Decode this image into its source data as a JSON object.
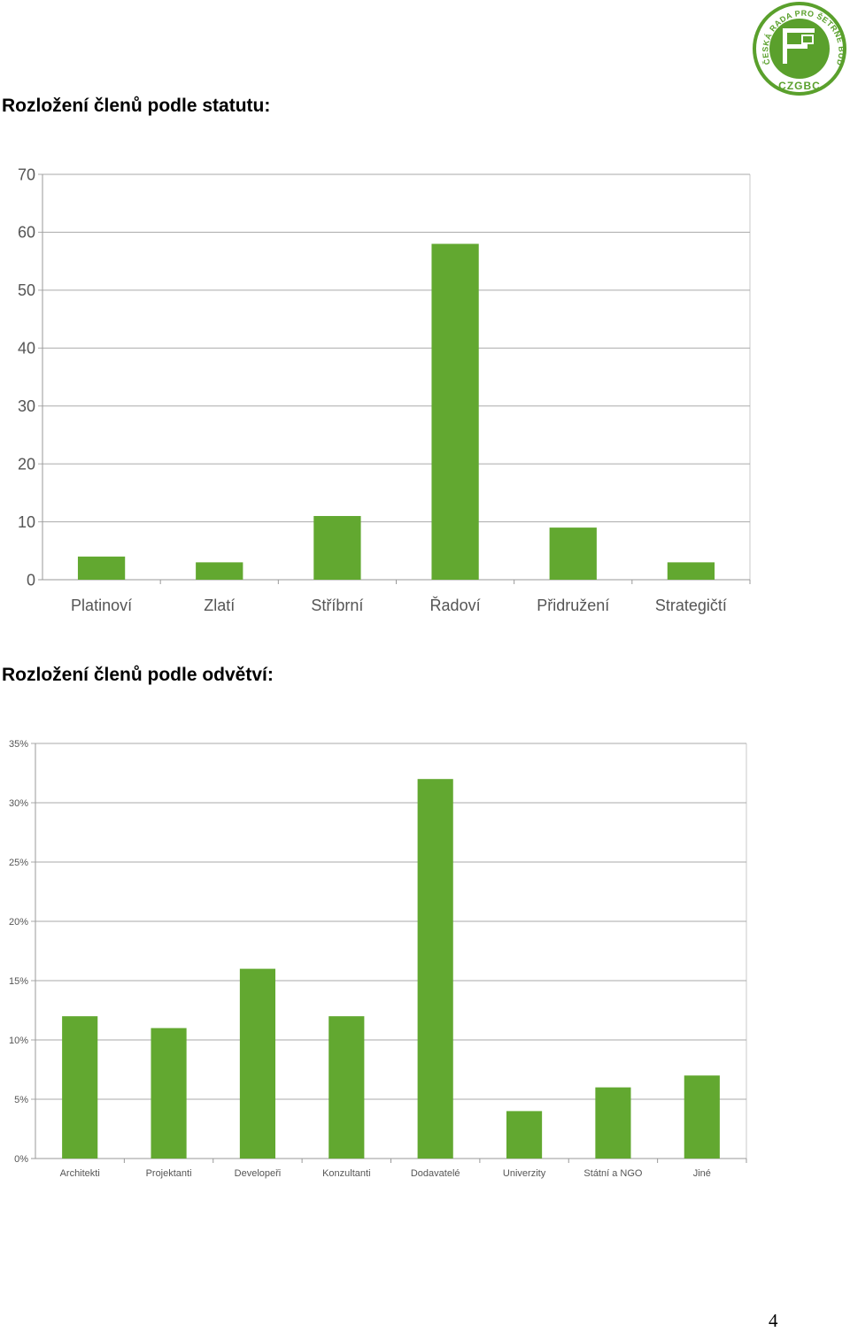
{
  "logo": {
    "ring_text": "ČESKÁ RADA PRO ŠETRNÉ BUDOVY",
    "abbr": "CZGBC",
    "color": "#5aa02c"
  },
  "sections": [
    {
      "heading": "Rozložení členů podle statutu:"
    },
    {
      "heading": "Rozložení členů podle odvětví:"
    }
  ],
  "chart_data": [
    {
      "type": "bar",
      "categories": [
        "Platinoví",
        "Zlatí",
        "Stříbrní",
        "Řadoví",
        "Přidružení",
        "Strategičtí"
      ],
      "values": [
        4,
        3,
        11,
        58,
        9,
        3
      ],
      "ylim": [
        0,
        70
      ],
      "yticks": [
        0,
        10,
        20,
        30,
        40,
        50,
        60,
        70
      ],
      "grid": true,
      "bar_color": "#62a830"
    },
    {
      "type": "bar",
      "categories": [
        "Architekti",
        "Projektanti",
        "Developeři",
        "Konzultanti",
        "Dodavatelé",
        "Univerzity",
        "Státní a NGO",
        "Jiné"
      ],
      "values": [
        12,
        11,
        16,
        12,
        32,
        4,
        6,
        7
      ],
      "ylim": [
        0,
        35
      ],
      "yticks": [
        0,
        5,
        10,
        15,
        20,
        25,
        30,
        35
      ],
      "ytick_suffix": "%",
      "grid": true,
      "bar_color": "#62a830"
    }
  ],
  "page_number": "4"
}
